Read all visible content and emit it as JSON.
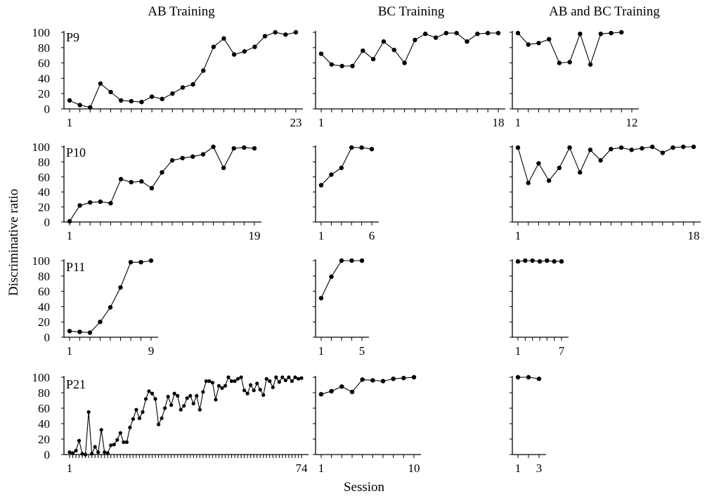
{
  "figure": {
    "column_titles": [
      "AB Training",
      "BC Training",
      "AB and BC Training"
    ],
    "row_labels": [
      "P9",
      "P10",
      "P11",
      "P21"
    ],
    "ylabel": "Discriminative ratio",
    "xlabel": "Session"
  },
  "chart_data": [
    {
      "type": "line",
      "participant": "P9",
      "phase": "AB Training",
      "ylim": [
        0,
        100
      ],
      "yticks": [
        0,
        20,
        40,
        60,
        80,
        100
      ],
      "x_tick_labels": [
        "1",
        "23"
      ],
      "x": [
        1,
        2,
        3,
        4,
        5,
        6,
        7,
        8,
        9,
        10,
        11,
        12,
        13,
        14,
        15,
        16,
        17,
        18,
        19,
        20,
        21,
        22,
        23
      ],
      "values": [
        11,
        5,
        2,
        33,
        22,
        11,
        10,
        9,
        16,
        13,
        20,
        28,
        32,
        50,
        81,
        92,
        71,
        75,
        81,
        95,
        100,
        97,
        100
      ]
    },
    {
      "type": "line",
      "participant": "P9",
      "phase": "BC Training",
      "ylim": [
        0,
        100
      ],
      "yticks": [
        0,
        20,
        40,
        60,
        80,
        100
      ],
      "x_tick_labels": [
        "1",
        "18"
      ],
      "x": [
        1,
        2,
        3,
        4,
        5,
        6,
        7,
        8,
        9,
        10,
        11,
        12,
        13,
        14,
        15,
        16,
        17,
        18
      ],
      "values": [
        72,
        58,
        56,
        56,
        76,
        65,
        88,
        77,
        60,
        90,
        98,
        93,
        99,
        99,
        88,
        98,
        99,
        99
      ]
    },
    {
      "type": "line",
      "participant": "P9",
      "phase": "AB and BC Training",
      "ylim": [
        0,
        100
      ],
      "yticks": [
        0,
        20,
        40,
        60,
        80,
        100
      ],
      "x_tick_labels": [
        "1",
        "12"
      ],
      "x": [
        1,
        2,
        3,
        4,
        5,
        6,
        7,
        8,
        9,
        10,
        11
      ],
      "values": [
        99,
        84,
        86,
        91,
        60,
        61,
        98,
        58,
        98,
        99,
        100
      ]
    },
    {
      "type": "line",
      "participant": "P10",
      "phase": "AB Training",
      "ylim": [
        0,
        100
      ],
      "yticks": [
        0,
        20,
        40,
        60,
        80,
        100
      ],
      "x_tick_labels": [
        "1",
        "19"
      ],
      "x": [
        1,
        2,
        3,
        4,
        5,
        6,
        7,
        8,
        9,
        10,
        11,
        12,
        13,
        14,
        15,
        16,
        17,
        18,
        19
      ],
      "values": [
        1,
        22,
        26,
        27,
        25,
        57,
        53,
        54,
        45,
        66,
        82,
        85,
        87,
        90,
        100,
        72,
        98,
        99,
        98
      ]
    },
    {
      "type": "line",
      "participant": "P10",
      "phase": "BC Training",
      "ylim": [
        0,
        100
      ],
      "yticks": [
        0,
        20,
        40,
        60,
        80,
        100
      ],
      "x_tick_labels": [
        "1",
        "6"
      ],
      "x": [
        1,
        2,
        3,
        4,
        5,
        6
      ],
      "values": [
        49,
        63,
        72,
        99,
        99,
        97
      ]
    },
    {
      "type": "line",
      "participant": "P10",
      "phase": "AB and BC Training",
      "ylim": [
        0,
        100
      ],
      "yticks": [
        0,
        20,
        40,
        60,
        80,
        100
      ],
      "x_tick_labels": [
        "1",
        "18"
      ],
      "x": [
        1,
        2,
        3,
        4,
        5,
        6,
        7,
        8,
        9,
        10,
        11,
        12,
        13,
        14,
        15,
        16,
        17,
        18
      ],
      "values": [
        99,
        52,
        78,
        55,
        72,
        99,
        66,
        96,
        82,
        97,
        99,
        96,
        98,
        100,
        92,
        99,
        100,
        100
      ]
    },
    {
      "type": "line",
      "participant": "P11",
      "phase": "AB Training",
      "ylim": [
        0,
        100
      ],
      "yticks": [
        0,
        20,
        40,
        60,
        80,
        100
      ],
      "x_tick_labels": [
        "1",
        "9"
      ],
      "x": [
        1,
        2,
        3,
        4,
        5,
        6,
        7,
        8,
        9
      ],
      "values": [
        8,
        7,
        6,
        20,
        39,
        65,
        98,
        98,
        100
      ]
    },
    {
      "type": "line",
      "participant": "P11",
      "phase": "BC Training",
      "ylim": [
        0,
        100
      ],
      "yticks": [
        0,
        20,
        40,
        60,
        80,
        100
      ],
      "x_tick_labels": [
        "1",
        "5"
      ],
      "x": [
        1,
        2,
        3,
        4,
        5
      ],
      "values": [
        51,
        79,
        100,
        100,
        100
      ]
    },
    {
      "type": "line",
      "participant": "P11",
      "phase": "AB and BC Training",
      "ylim": [
        0,
        100
      ],
      "yticks": [
        0,
        20,
        40,
        60,
        80,
        100
      ],
      "x_tick_labels": [
        "1",
        "7"
      ],
      "x": [
        1,
        2,
        3,
        4,
        5,
        6,
        7
      ],
      "values": [
        99,
        100,
        100,
        99,
        100,
        99,
        99
      ]
    },
    {
      "type": "line",
      "participant": "P21",
      "phase": "AB Training",
      "ylim": [
        0,
        100
      ],
      "yticks": [
        0,
        20,
        40,
        60,
        80,
        100
      ],
      "x_tick_labels": [
        "1",
        "74"
      ],
      "x": [
        1,
        2,
        3,
        4,
        5,
        6,
        7,
        8,
        9,
        10,
        11,
        12,
        13,
        14,
        15,
        16,
        17,
        18,
        19,
        20,
        21,
        22,
        23,
        24,
        25,
        26,
        27,
        28,
        29,
        30,
        31,
        32,
        33,
        34,
        35,
        36,
        37,
        38,
        39,
        40,
        41,
        42,
        43,
        44,
        45,
        46,
        47,
        48,
        49,
        50,
        51,
        52,
        53,
        54,
        55,
        56,
        57,
        58,
        59,
        60,
        61,
        62,
        63,
        64,
        65,
        66,
        67,
        68,
        69,
        70,
        71,
        72,
        73,
        74
      ],
      "values": [
        3,
        2,
        5,
        18,
        1,
        0,
        55,
        1,
        10,
        3,
        32,
        3,
        2,
        12,
        13,
        19,
        28,
        16,
        16,
        35,
        46,
        58,
        47,
        55,
        72,
        82,
        79,
        72,
        39,
        47,
        60,
        75,
        64,
        79,
        76,
        58,
        63,
        73,
        76,
        66,
        76,
        58,
        81,
        95,
        95,
        93,
        71,
        89,
        86,
        89,
        100,
        95,
        95,
        98,
        100,
        83,
        79,
        90,
        83,
        92,
        84,
        77,
        98,
        95,
        87,
        100,
        94,
        100,
        96,
        100,
        95,
        100,
        98,
        99
      ]
    },
    {
      "type": "line",
      "participant": "P21",
      "phase": "BC Training",
      "ylim": [
        0,
        100
      ],
      "yticks": [
        0,
        20,
        40,
        60,
        80,
        100
      ],
      "x_tick_labels": [
        "1",
        "10"
      ],
      "x": [
        1,
        2,
        3,
        4,
        5,
        6,
        7,
        8,
        9,
        10
      ],
      "values": [
        78,
        82,
        88,
        81,
        97,
        96,
        95,
        98,
        99,
        100
      ]
    },
    {
      "type": "line",
      "participant": "P21",
      "phase": "AB and BC Training",
      "ylim": [
        0,
        100
      ],
      "yticks": [
        0,
        20,
        40,
        60,
        80,
        100
      ],
      "x_tick_labels": [
        "1",
        "3"
      ],
      "x": [
        1,
        2,
        3
      ],
      "values": [
        100,
        100,
        98
      ]
    }
  ]
}
